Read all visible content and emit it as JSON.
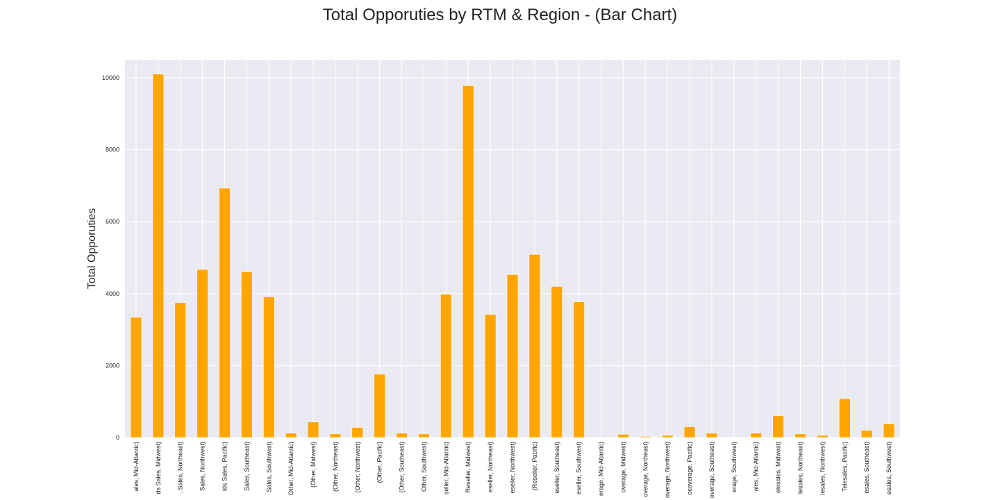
{
  "chart_data": {
    "type": "bar",
    "title": "Total Opporuties by RTM & Region - (Bar Chart)",
    "xlabel": "",
    "ylabel": "Total Opporuties",
    "ylim": [
      0,
      10500
    ],
    "y_ticks": [
      0,
      2000,
      4000,
      6000,
      8000,
      10000
    ],
    "y_tick_labels": [
      "0",
      "2000",
      "4000",
      "6000",
      "8000",
      "10000"
    ],
    "grid": true,
    "bar_color": "#FFA500",
    "background": "#EAEAF2",
    "categories": [
      "ales, Mid-Atlantic)",
      "ds Sales, Midwest)",
      ". Sales, Northeast)",
      "Sales, Northwest)",
      "lds Sales, Pacific)",
      "Sales, Southeast)",
      "Sales, Southwest)",
      "Other, Mid-Atlantic)",
      "(Other, Midwest)",
      "(Other, Northeast)",
      "(Other, Northwest)",
      "(Other, Pacific)",
      "(Other, Southeast)",
      "Other, Southwest)",
      "seller, Mid-Atlantic)",
      "Reseller, Midwest)",
      "eseller, Northeast)",
      "eseller, Northwest)",
      "(Reseller, Pacific)",
      "eseller, Southeast)",
      "eseller, Southwest)",
      "erage, Mid-Atlantic)",
      "overage, Midwest)",
      "overage, Northeast)",
      "overage, Northwest)",
      "ocoverage, Pacific)",
      "overage, Southeast)",
      "erage, Southwest)",
      "ales, Mid-Atlantic)",
      "elesales, Midwest)",
      "lesales, Northeast)",
      "lesales, Northwest)",
      "Telesales, Pacific)",
      "esales, Southeast)",
      "esales, Southwest)"
    ],
    "values": [
      3340,
      10100,
      3750,
      4670,
      6930,
      4610,
      3910,
      120,
      430,
      100,
      280,
      1760,
      120,
      100,
      3980,
      9780,
      3420,
      4530,
      5090,
      4200,
      3770,
      0,
      90,
      30,
      60,
      300,
      120,
      10,
      120,
      610,
      100,
      60,
      1080,
      200,
      380
    ]
  }
}
